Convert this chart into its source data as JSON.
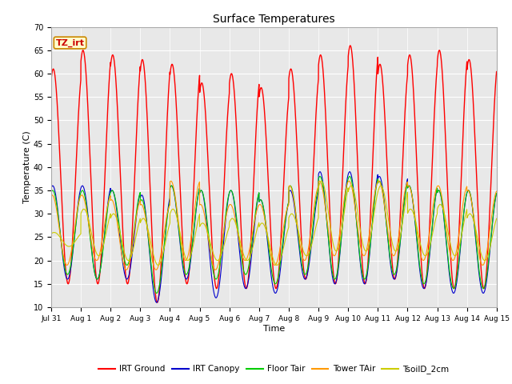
{
  "title": "Surface Temperatures",
  "xlabel": "Time",
  "ylabel": "Temperature (C)",
  "ylim": [
    10,
    70
  ],
  "xlim_days": [
    0,
    15
  ],
  "fig_facecolor": "#ffffff",
  "plot_bg_color": "#e8e8e8",
  "series": {
    "IRT Ground": {
      "color": "#ff0000",
      "lw": 1.0
    },
    "IRT Canopy": {
      "color": "#0000cc",
      "lw": 0.8
    },
    "Floor Tair": {
      "color": "#00cc00",
      "lw": 0.8
    },
    "Tower TAir": {
      "color": "#ff9900",
      "lw": 0.8
    },
    "TsoilD_2cm": {
      "color": "#cccc00",
      "lw": 0.8
    }
  },
  "annotation_text": "TZ_irt",
  "annotation_bg": "#ffffcc",
  "annotation_border": "#cc8800",
  "xtick_labels": [
    "Jul 31",
    "Aug 1",
    "Aug 2",
    "Aug 3",
    "Aug 4",
    "Aug 5",
    "Aug 6",
    "Aug 7",
    "Aug 8",
    "Aug 9",
    "Aug 10",
    "Aug 11",
    "Aug 12",
    "Aug 13",
    "Aug 14",
    "Aug 15"
  ],
  "xtick_positions": [
    0,
    1,
    2,
    3,
    4,
    5,
    6,
    7,
    8,
    9,
    10,
    11,
    12,
    13,
    14,
    15
  ],
  "ytick_labels": [
    "10",
    "15",
    "20",
    "25",
    "30",
    "35",
    "40",
    "45",
    "50",
    "55",
    "60",
    "65",
    "70"
  ],
  "ytick_positions": [
    10,
    15,
    20,
    25,
    30,
    35,
    40,
    45,
    50,
    55,
    60,
    65,
    70
  ]
}
